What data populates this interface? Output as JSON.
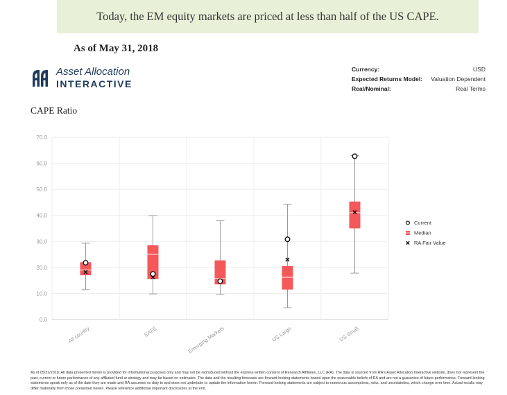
{
  "banner": {
    "text": "Today, the EM equity markets are priced at less than half of the US CAPE."
  },
  "as_of": "As of May 31, 2018",
  "logo": {
    "line1": "Asset Allocation",
    "line2": "INTERACTIVE",
    "icon": "ra-logo-icon",
    "color": "#1f3b5c"
  },
  "meta": [
    {
      "key": "Currency:",
      "value": "USD"
    },
    {
      "key": "Expected Returns Model:",
      "value": "Valuation Dependent"
    },
    {
      "key": "Real/Nominal:",
      "value": "Real Terms"
    }
  ],
  "chart_data": {
    "type": "boxplot",
    "title": "CAPE Ratio",
    "xlabel": "",
    "ylabel": "",
    "ylim": [
      0,
      70
    ],
    "yticks": [
      "0.0",
      "10.0",
      "20.0",
      "30.0",
      "40.0",
      "50.0",
      "60.0",
      "70.0"
    ],
    "grid": true,
    "legend_position": "right",
    "box_color": "#f4585b",
    "categories": [
      "All country",
      "EAFE",
      "Emerging Markets",
      "US Large",
      "US Small"
    ],
    "boxes": [
      {
        "whisker_low": 11.5,
        "q1": 17,
        "median": 19,
        "q3": 22,
        "whisker_high": 29.3,
        "current": 21.8,
        "fair_value": 18.2
      },
      {
        "whisker_low": 9.8,
        "q1": 15.5,
        "median": 25,
        "q3": 28.5,
        "whisker_high": 39.8,
        "current": 17.5,
        "fair_value": 16.2
      },
      {
        "whisker_low": 9.5,
        "q1": 13.5,
        "median": 15.8,
        "q3": 22.7,
        "whisker_high": 38,
        "current": 14.7,
        "fair_value": 14.5
      },
      {
        "whisker_low": 4.5,
        "q1": 11.5,
        "median": 16.2,
        "q3": 20.5,
        "whisker_high": 44.2,
        "current": 30.8,
        "fair_value": 23
      },
      {
        "whisker_low": 17.8,
        "q1": 35,
        "median": 41,
        "q3": 45.3,
        "whisker_high": 63,
        "current": 62.7,
        "fair_value": 41.2
      }
    ],
    "legend": [
      {
        "label": "Current",
        "marker": "circle"
      },
      {
        "label": "Median",
        "marker": "median-line"
      },
      {
        "label": "RA Fair Value",
        "marker": "x"
      }
    ]
  },
  "disclaimer": "As of 05/31/2018. All data presented herein is provided for informational purposes only and may not be reproduced without the express written consent of Research Affiliates, LLC (RA). The data is sourced from RA's Asset Allocation Interactive website, does not represent the past, current or future performance of any affiliated fund or strategy and may be based on estimates. The data and the resulting forecasts are forward-looking statements based upon the reasonable beliefs of RA and are not a guarantee of future performance. Forward-looking statements speak only as of the date they are made and RA assumes no duty to and does not undertake to update the information herein. Forward-looking statements are subject to numerous assumptions, risks, and uncertainties, which change over time. Actual results may differ materially from those presented herein. Please reference additional important disclosures at the end."
}
